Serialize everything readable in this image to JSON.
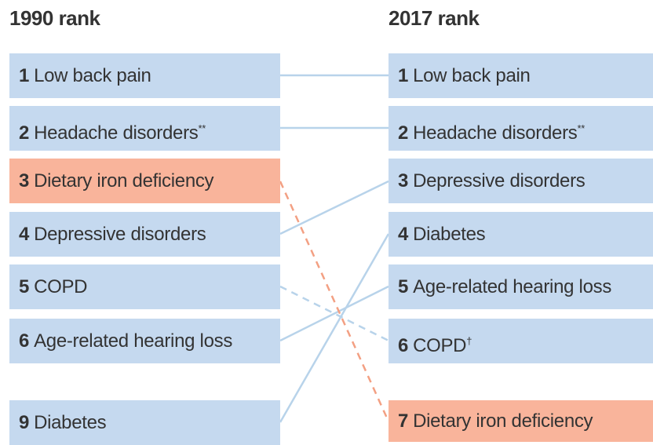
{
  "left": {
    "title": "1990 rank",
    "items": [
      {
        "rank": "1",
        "label": "Low back pain"
      },
      {
        "rank": "2",
        "label": "Headache disorders",
        "note": "**"
      },
      {
        "rank": "3",
        "label": "Dietary iron deficiency"
      },
      {
        "rank": "4",
        "label": "Depressive disorders"
      },
      {
        "rank": "5",
        "label": "COPD"
      },
      {
        "rank": "6",
        "label": "Age-related hearing loss"
      },
      {
        "rank": "9",
        "label": "Diabetes"
      }
    ]
  },
  "right": {
    "title": "2017 rank",
    "items": [
      {
        "rank": "1",
        "label": "Low back pain"
      },
      {
        "rank": "2",
        "label": "Headache disorders",
        "note": "**"
      },
      {
        "rank": "3",
        "label": "Depressive disorders"
      },
      {
        "rank": "4",
        "label": "Diabetes"
      },
      {
        "rank": "5",
        "label": "Age-related hearing loss"
      },
      {
        "rank": "6",
        "label": "COPD",
        "note": "†"
      },
      {
        "rank": "7",
        "label": "Dietary iron deficiency"
      }
    ]
  }
}
